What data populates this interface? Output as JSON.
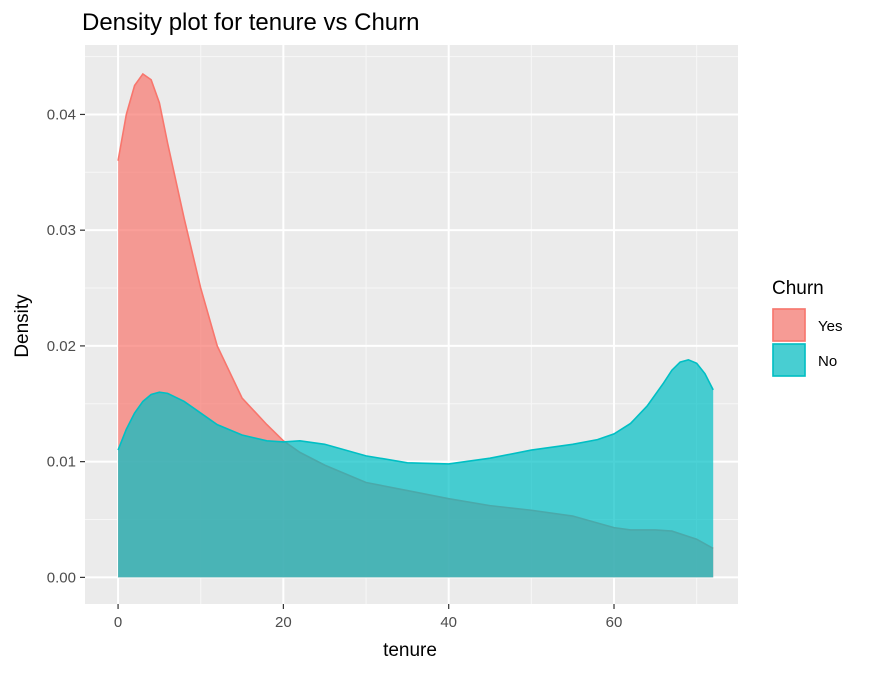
{
  "chart_data": {
    "type": "area",
    "title": "Density plot for tenure vs Churn",
    "xlabel": "tenure",
    "ylabel": "Density",
    "xlim": [
      -4,
      75
    ],
    "ylim": [
      -0.0023,
      0.046
    ],
    "x_ticks": [
      0,
      20,
      40,
      60
    ],
    "x_tick_labels": [
      "0",
      "20",
      "40",
      "60"
    ],
    "y_ticks": [
      0.0,
      0.01,
      0.02,
      0.03,
      0.04
    ],
    "y_tick_labels": [
      "0.00",
      "0.01",
      "0.02",
      "0.03",
      "0.04"
    ],
    "grid": true,
    "legend": {
      "title": "Churn",
      "position": "right",
      "entries": [
        {
          "label": "Yes",
          "fill": "#F8766D",
          "stroke": "#F8766D"
        },
        {
          "label": "No",
          "fill": "#00BFC4",
          "stroke": "#00BFC4"
        }
      ]
    },
    "series": [
      {
        "name": "Yes",
        "fill": "#F8766D",
        "stroke": "#F8766D",
        "x": [
          0,
          1,
          2,
          3,
          4,
          5,
          6,
          8,
          10,
          12,
          15,
          18,
          20,
          22,
          25,
          30,
          35,
          40,
          45,
          50,
          55,
          58,
          60,
          62,
          65,
          67,
          70,
          72
        ],
        "y": [
          0.036,
          0.04,
          0.0425,
          0.0435,
          0.043,
          0.041,
          0.0375,
          0.031,
          0.025,
          0.02,
          0.0155,
          0.0132,
          0.0118,
          0.0108,
          0.0097,
          0.0082,
          0.0075,
          0.0068,
          0.0062,
          0.0058,
          0.0053,
          0.0047,
          0.0043,
          0.0041,
          0.0041,
          0.004,
          0.0033,
          0.0025
        ]
      },
      {
        "name": "No",
        "fill": "#00BFC4",
        "stroke": "#00BFC4",
        "x": [
          0,
          1,
          2,
          3,
          4,
          5,
          6,
          8,
          10,
          12,
          15,
          18,
          20,
          22,
          25,
          30,
          35,
          40,
          45,
          50,
          55,
          58,
          60,
          62,
          64,
          66,
          67,
          68,
          69,
          70,
          71,
          72
        ],
        "y": [
          0.011,
          0.0128,
          0.0142,
          0.0152,
          0.0158,
          0.016,
          0.0159,
          0.0152,
          0.0142,
          0.0132,
          0.0123,
          0.0118,
          0.0117,
          0.0118,
          0.0115,
          0.0105,
          0.0099,
          0.0098,
          0.0103,
          0.011,
          0.0115,
          0.0119,
          0.0124,
          0.0133,
          0.0148,
          0.0168,
          0.0179,
          0.0186,
          0.0188,
          0.0185,
          0.0176,
          0.0162
        ]
      }
    ]
  }
}
